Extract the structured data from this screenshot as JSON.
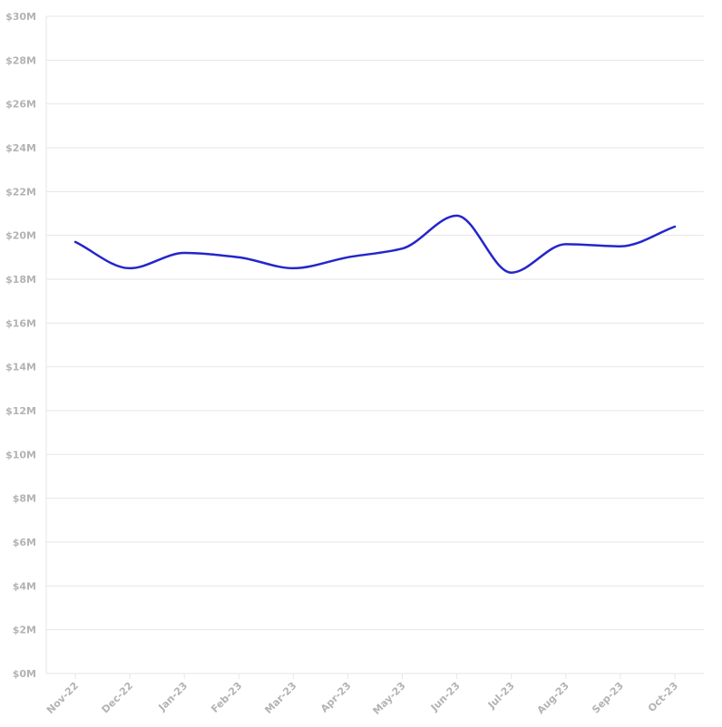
{
  "chart_data": {
    "type": "line",
    "categories": [
      "Nov-22",
      "Dec-22",
      "Jan-23",
      "Feb-23",
      "Mar-23",
      "Apr-23",
      "May-23",
      "Jun-23",
      "Jul-23",
      "Aug-23",
      "Sep-23",
      "Oct-23"
    ],
    "series": [
      {
        "values": [
          19.7,
          18.5,
          19.2,
          19.0,
          18.5,
          19.0,
          19.4,
          20.9,
          18.3,
          19.6,
          19.5,
          20.4
        ],
        "color": "#2525cc"
      }
    ],
    "ylim": [
      0,
      30
    ],
    "yticks": [
      0,
      2,
      4,
      6,
      8,
      10,
      12,
      14,
      16,
      18,
      20,
      22,
      24,
      26,
      28,
      30
    ],
    "ytick_labels": [
      "$0M",
      "$2M",
      "$4M",
      "$6M",
      "$8M",
      "$10M",
      "$12M",
      "$14M",
      "$16M",
      "$18M",
      "$20M",
      "$22M",
      "$24M",
      "$26M",
      "$28M",
      "$30M"
    ],
    "grid": true,
    "legend": false
  }
}
